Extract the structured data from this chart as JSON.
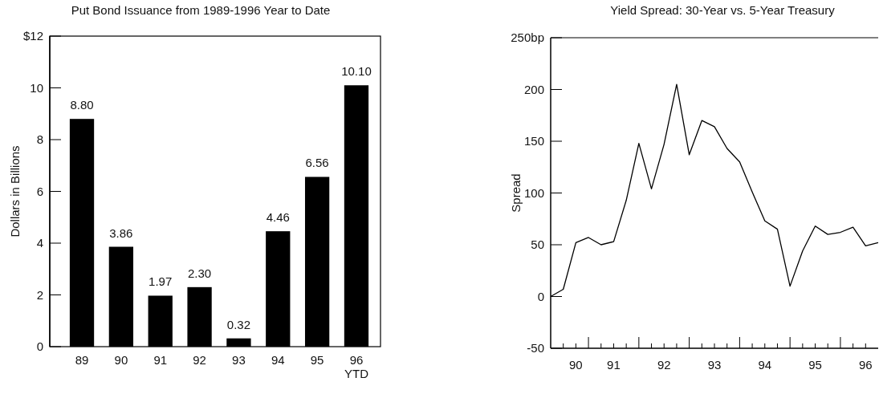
{
  "chart_data": [
    {
      "type": "bar",
      "title": "Put Bond Issuance from 1989-1996 Year to Date",
      "ylabel": "Dollars in Billions",
      "categories": [
        "89",
        "90",
        "91",
        "92",
        "93",
        "94",
        "95",
        "96\nYTD"
      ],
      "values": [
        8.8,
        3.86,
        1.97,
        2.3,
        0.32,
        4.46,
        6.56,
        10.1
      ],
      "value_labels": [
        "8.80",
        "3.86",
        "1.97",
        "2.30",
        "0.32",
        "4.46",
        "6.56",
        "10.10"
      ],
      "color": "#000000",
      "ylim": [
        0,
        12
      ],
      "yticks": [
        0,
        2,
        4,
        6,
        8,
        10,
        {
          "value": 12,
          "label": "$12"
        }
      ],
      "grid": false
    },
    {
      "type": "line",
      "title": "Yield Spread: 30-Year vs. 5-Year Treasury",
      "ylabel": "Spread",
      "series": [
        {
          "color": "#000000",
          "values": [
            0,
            7,
            52,
            57,
            50,
            53,
            93,
            148,
            104,
            147,
            205,
            137,
            170,
            164,
            143,
            130,
            101,
            73,
            65,
            10,
            44,
            68,
            60,
            62,
            67,
            49,
            52
          ]
        }
      ],
      "categories": [
        null,
        null,
        "90",
        null,
        null,
        "91",
        null,
        null,
        null,
        "92",
        null,
        null,
        null,
        "93",
        null,
        null,
        null,
        "94",
        null,
        null,
        null,
        "95",
        null,
        null,
        null,
        "96",
        null
      ],
      "ylim": [
        -50,
        250
      ],
      "yticks": [
        -50,
        0,
        50,
        100,
        150,
        200,
        {
          "value": 250,
          "label": "250bp"
        }
      ],
      "grid": false,
      "marker": "none",
      "line_style": "solid"
    }
  ]
}
